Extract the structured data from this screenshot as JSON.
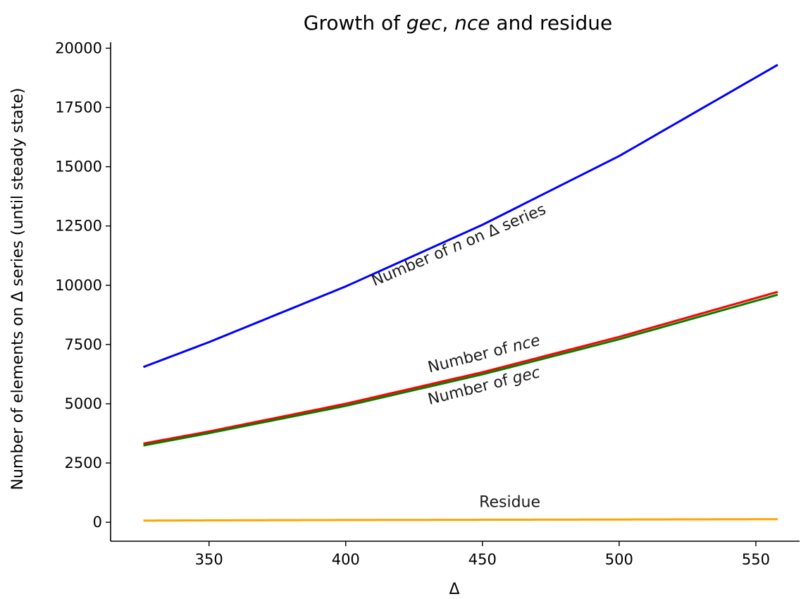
{
  "chart_data": {
    "type": "line",
    "title": {
      "prefix": "Growth of ",
      "em1": "gec",
      "sep": ", ",
      "em2": "nce",
      "suffix": " and residue"
    },
    "xlabel": "Δ",
    "ylabel": "Number of elements on Δ series (until steady state)",
    "xlim": [
      314,
      566
    ],
    "ylim": [
      -800,
      20250
    ],
    "xticks": [
      350,
      400,
      450,
      500,
      550
    ],
    "yticks": [
      0,
      2500,
      5000,
      7500,
      10000,
      12500,
      15000,
      17500,
      20000
    ],
    "grid": false,
    "series": [
      {
        "key": "n",
        "color": "#0000ff",
        "x": [
          326,
          350,
          400,
          450,
          500,
          558
        ],
        "y": [
          6550,
          7600,
          9950,
          12550,
          15450,
          19300
        ]
      },
      {
        "key": "nce",
        "color": "#ff0000",
        "x": [
          326,
          350,
          400,
          450,
          500,
          558
        ],
        "y": [
          3320,
          3830,
          5000,
          6330,
          7820,
          9720
        ]
      },
      {
        "key": "gec",
        "color": "#008000",
        "x": [
          326,
          350,
          400,
          450,
          500,
          558
        ],
        "y": [
          3240,
          3760,
          4910,
          6240,
          7720,
          9600
        ]
      },
      {
        "key": "residue",
        "color": "#ffa500",
        "x": [
          326,
          350,
          400,
          450,
          500,
          558
        ],
        "y": [
          70,
          80,
          95,
          105,
          115,
          130
        ]
      }
    ],
    "annotations": [
      {
        "key": "n",
        "parts": [
          "Number of ",
          "n",
          " on Δ series"
        ],
        "x": 442,
        "y": 11500,
        "angle": -23
      },
      {
        "key": "nce",
        "parts": [
          "Number of ",
          "nce",
          ""
        ],
        "x": 451,
        "y": 6900,
        "angle": -14
      },
      {
        "key": "gec",
        "parts": [
          "Number of ",
          "gec",
          ""
        ],
        "x": 451,
        "y": 5550,
        "angle": -14
      },
      {
        "key": "residue",
        "parts": [
          "Residue",
          "",
          ""
        ],
        "x": 460,
        "y": 640,
        "angle": 0
      }
    ]
  }
}
